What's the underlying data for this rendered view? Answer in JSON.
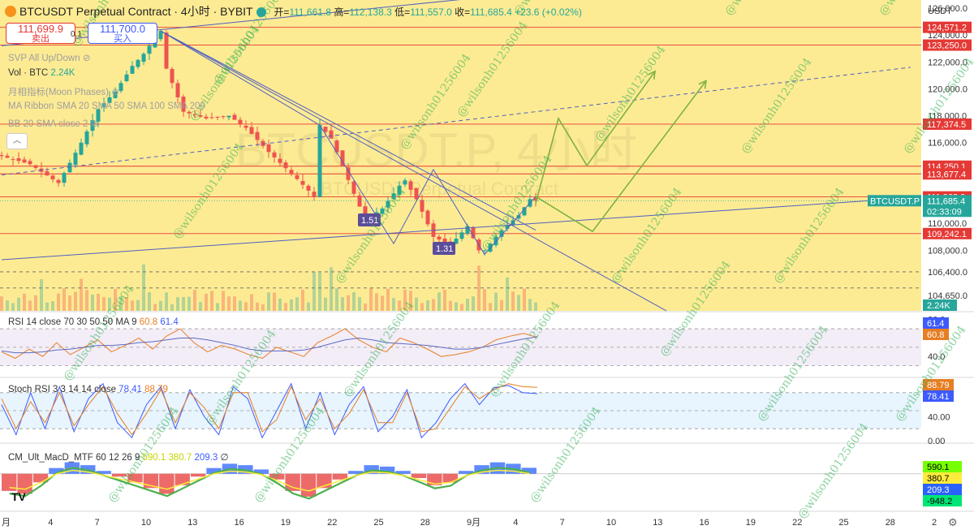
{
  "header": {
    "symbol_title": "BTCUSDT Perpetual Contract · 4小时 · BYBIT",
    "open_label": "开=",
    "open": "111,661.8",
    "high_label": "高=",
    "high": "112,138.3",
    "low_label": "低=",
    "low": "111,557.0",
    "close_label": "收=",
    "close": "111,685.4",
    "change": "+23.6 (+0.02%)",
    "currency": "USDT"
  },
  "trade": {
    "sell_price": "111,699.9",
    "sell_label": "卖出",
    "spread": "0.1",
    "buy_price": "111,700.0",
    "buy_label": "买入"
  },
  "indicators": {
    "svp": "SVP All Up/Down",
    "vol_label": "Vol · BTC",
    "vol_value": "2.24K",
    "moon": "月相指标(Moon Phases)",
    "ma_ribbon": "MA Ribbon SMA 20 SMA 50 SMA 100 SMA 200",
    "bb": "BB 20 SMA close 2",
    "rsi_label": "RSI 14 close 70 30 50 50 MA 9",
    "rsi_v1": "60.8",
    "rsi_v2": "61.4",
    "stoch_label": "Stoch RSI 3 3 14 14 close",
    "stoch_v1": "78.41",
    "stoch_v2": "88.79",
    "macd_label": "CM_Ult_MacD_MTF 60 12 26 9",
    "macd_v1": "590.1",
    "macd_v2": "380.7",
    "macd_v3": "209.3",
    "macd_v4": "∅"
  },
  "watermark": "@wilsonh01256004",
  "background_text": {
    "line1": "BTCUSDT.P, 4小时",
    "line2": "BTCUSDT Perpetual Contract"
  },
  "price_badges": {
    "b1": "1.51",
    "b2": "1.31"
  },
  "colors": {
    "bg_main": "#fdeb93",
    "up": "#26a69a",
    "down": "#ef5350",
    "resistance": "#e53935",
    "trend": "#5060c0",
    "projection": "#7cb342"
  },
  "chart_data": [
    {
      "type": "candlestick",
      "name": "main",
      "x_ticks": [
        "月",
        "4",
        "7",
        "10",
        "13",
        "16",
        "19",
        "22",
        "25",
        "28",
        "9月",
        "4",
        "7",
        "10",
        "13",
        "16",
        "19",
        "22",
        "25",
        "28",
        "2"
      ],
      "y_ticks": [
        126000,
        124000,
        122000,
        120000,
        118000,
        116000,
        114000,
        112000,
        110000,
        108000,
        106400,
        104650
      ],
      "ylim": [
        103500,
        126600
      ],
      "price_levels": [
        {
          "label": "124,571.2",
          "value": 124571.2,
          "color": "#e53935"
        },
        {
          "label": "123,250.0",
          "value": 123250.0,
          "color": "#e53935"
        },
        {
          "label": "117,374.5",
          "value": 117374.5,
          "color": "#e53935"
        },
        {
          "label": "114,250.1",
          "value": 114250.1,
          "color": "#e53935"
        },
        {
          "label": "113,677.4",
          "value": 113677.4,
          "color": "#e53935"
        },
        {
          "label": "111,968.0",
          "value": 111968.0,
          "color": "#e53935"
        },
        {
          "label": "109,242.1",
          "value": 109242.1,
          "color": "#e53935"
        }
      ],
      "last_price": {
        "symbol": "BTCUSDT.P",
        "price": "111,685.4",
        "countdown": "02:33:09",
        "color": "#26a69a"
      },
      "volume_badge": "2.24K",
      "path": [
        [
          0,
          115000
        ],
        [
          5,
          114400
        ],
        [
          10,
          113000
        ],
        [
          14,
          116000
        ],
        [
          17,
          118500
        ],
        [
          20,
          119800
        ],
        [
          23,
          121700
        ],
        [
          25,
          122600
        ],
        [
          27,
          123800
        ],
        [
          28,
          124300
        ],
        [
          29,
          121500
        ],
        [
          32,
          118300
        ],
        [
          36,
          117800
        ],
        [
          40,
          118000
        ],
        [
          43,
          117100
        ],
        [
          47,
          115300
        ],
        [
          52,
          113300
        ],
        [
          55,
          112000
        ],
        [
          56,
          117300
        ],
        [
          58,
          116300
        ],
        [
          62,
          112200
        ],
        [
          64,
          110300
        ],
        [
          67,
          111100
        ],
        [
          70,
          112800
        ],
        [
          71,
          113200
        ],
        [
          73,
          111800
        ],
        [
          76,
          109000
        ],
        [
          79,
          108400
        ],
        [
          82,
          109800
        ],
        [
          84,
          108000
        ],
        [
          85,
          108000
        ],
        [
          88,
          109500
        ],
        [
          91,
          110600
        ],
        [
          93,
          111800
        ],
        [
          94,
          111686
        ]
      ],
      "projection_paths": [
        [
          [
            94,
            112000
          ],
          [
            104,
            109400
          ],
          [
            124,
            120600
          ]
        ],
        [
          [
            94,
            111500
          ],
          [
            98,
            117800
          ],
          [
            103,
            114300
          ],
          [
            115,
            121300
          ]
        ]
      ],
      "trend_lines": [
        {
          "from": [
            0,
            107300
          ],
          "to": [
            160,
            111900
          ],
          "color": "#5060c0",
          "style": "solid"
        },
        {
          "from": [
            0,
            113600
          ],
          "to": [
            160,
            121600
          ],
          "color": "#5060c0",
          "style": "dashed"
        },
        {
          "from": [
            28,
            124300
          ],
          "to": [
            94,
            109500
          ],
          "color": "#5060c0",
          "style": "solid"
        },
        {
          "from": [
            28,
            124300
          ],
          "to": [
            117,
            103500
          ],
          "color": "#5060c0",
          "style": "solid"
        },
        {
          "from": [
            0,
            123200
          ],
          "to": [
            160,
            130000
          ],
          "color": "#5060c0",
          "style": "solid"
        }
      ]
    },
    {
      "type": "line",
      "name": "rsi",
      "ylim": [
        20,
        85
      ],
      "y_ticks": [
        80,
        40
      ],
      "bands": [
        70,
        50,
        30
      ],
      "series": [
        {
          "name": "60.8",
          "color": "#e67e22",
          "values": [
            45,
            38,
            48,
            40,
            55,
            42,
            50,
            58,
            45,
            52,
            60,
            48,
            62,
            70,
            55,
            45,
            52,
            48,
            42,
            38,
            50,
            45,
            40,
            55,
            62,
            70,
            58,
            50,
            45,
            60,
            55,
            48,
            40,
            42,
            45,
            50,
            58,
            62,
            65,
            60.8
          ]
        },
        {
          "name": "61.4",
          "color": "#5c6bc0",
          "values": [
            46,
            44,
            44,
            45,
            47,
            48,
            50,
            52,
            52,
            53,
            55,
            56,
            58,
            60,
            60,
            58,
            55,
            52,
            48,
            46,
            46,
            46,
            47,
            50,
            54,
            58,
            60,
            58,
            55,
            54,
            53,
            52,
            50,
            48,
            48,
            50,
            53,
            56,
            59,
            61.4
          ]
        }
      ]
    },
    {
      "type": "line",
      "name": "stoch_rsi",
      "ylim": [
        0,
        100
      ],
      "y_ticks": [
        40.0,
        0.0
      ],
      "bands": [
        80,
        50,
        20
      ],
      "series": [
        {
          "name": "78.41",
          "color": "#3d5afe",
          "values": [
            60,
            10,
            80,
            20,
            90,
            15,
            70,
            95,
            30,
            5,
            60,
            90,
            20,
            85,
            40,
            10,
            90,
            70,
            5,
            50,
            95,
            20,
            80,
            10,
            60,
            90,
            15,
            40,
            85,
            5,
            30,
            70,
            95,
            60,
            88,
            92,
            80,
            78.41
          ]
        },
        {
          "name": "88.79",
          "color": "#e67e22",
          "values": [
            70,
            20,
            65,
            30,
            80,
            25,
            60,
            90,
            45,
            10,
            45,
            85,
            30,
            80,
            55,
            20,
            80,
            80,
            15,
            35,
            90,
            35,
            70,
            20,
            45,
            85,
            30,
            30,
            80,
            15,
            20,
            55,
            90,
            70,
            85,
            95,
            90,
            88.79
          ]
        }
      ]
    },
    {
      "type": "bar",
      "name": "macd",
      "ylim": [
        -1200,
        900
      ],
      "legend": [
        "590.1",
        "380.7",
        "209.3",
        "-948.2"
      ],
      "legend_colors": [
        "#76ff03",
        "#ffeb3b",
        "#2962ff",
        "#00e676"
      ],
      "values": [
        -600,
        -700,
        -300,
        200,
        400,
        300,
        100,
        -100,
        -300,
        -500,
        -700,
        -400,
        -100,
        200,
        350,
        300,
        150,
        -200,
        -600,
        -800,
        -500,
        -200,
        100,
        300,
        250,
        100,
        -150,
        -400,
        -300,
        100,
        300,
        400,
        350,
        209
      ]
    }
  ]
}
